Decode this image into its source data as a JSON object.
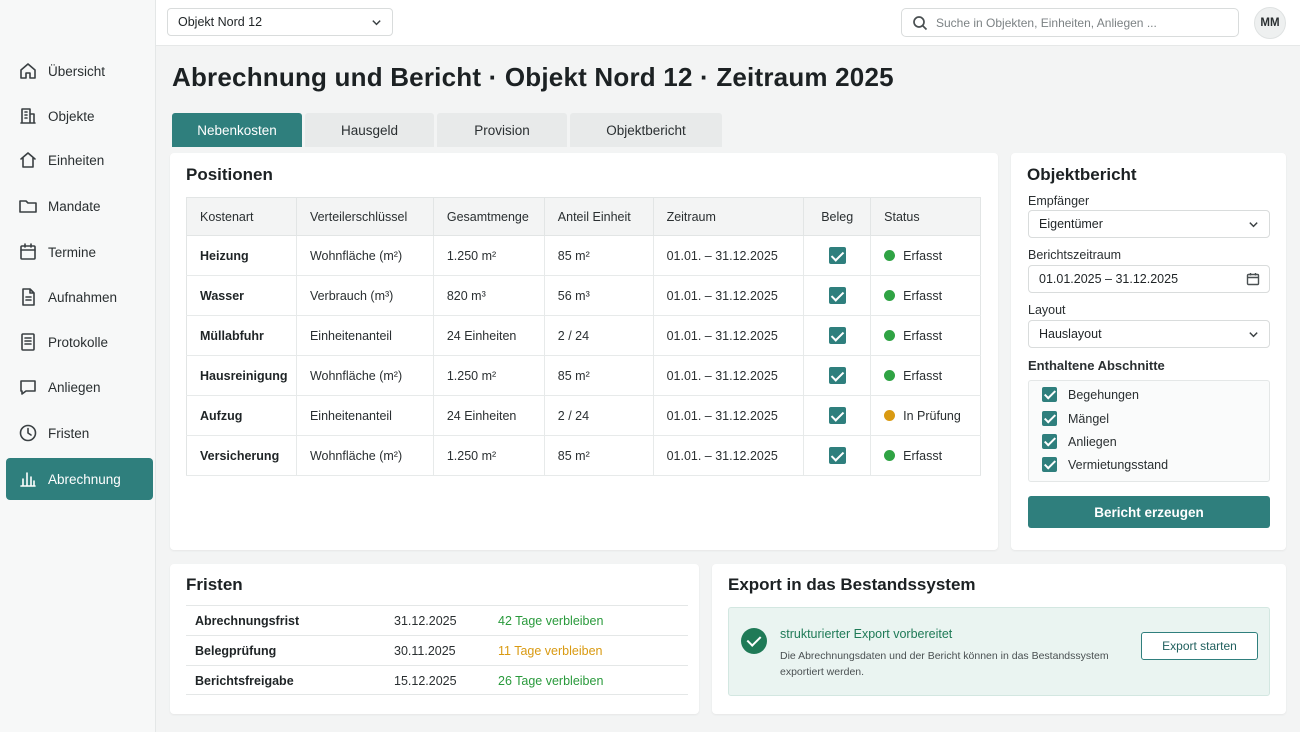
{
  "topbar": {
    "object_select": "Objekt Nord 12",
    "search_placeholder": "Suche in Objekten, Einheiten, Anliegen ...",
    "avatar_initials": "MM"
  },
  "sidebar": {
    "items": [
      {
        "label": "Übersicht",
        "icon": "home-icon"
      },
      {
        "label": "Objekte",
        "icon": "building-icon"
      },
      {
        "label": "Einheiten",
        "icon": "unit-home-icon"
      },
      {
        "label": "Mandate",
        "icon": "folder-icon"
      },
      {
        "label": "Termine",
        "icon": "calendar-icon"
      },
      {
        "label": "Aufnahmen",
        "icon": "document-icon"
      },
      {
        "label": "Protokolle",
        "icon": "list-document-icon"
      },
      {
        "label": "Anliegen",
        "icon": "chat-icon"
      },
      {
        "label": "Fristen",
        "icon": "clock-icon"
      },
      {
        "label": "Abrechnung",
        "icon": "bar-chart-icon",
        "active": true
      }
    ]
  },
  "page": {
    "title": "Abrechnung und Bericht · Objekt Nord 12 · Zeitraum 2025"
  },
  "tabs": [
    {
      "label": "Nebenkosten",
      "active": true
    },
    {
      "label": "Hausgeld"
    },
    {
      "label": "Provision"
    },
    {
      "label": "Objektbericht"
    }
  ],
  "positions": {
    "title": "Positionen",
    "headers": {
      "kostenart": "Kostenart",
      "schluessel": "Verteilerschlüssel",
      "gesamt": "Gesamtmenge",
      "anteil": "Anteil Einheit",
      "zeitraum": "Zeitraum",
      "beleg": "Beleg",
      "status": "Status"
    },
    "rows": [
      {
        "kostenart": "Heizung",
        "schluessel": "Wohnfläche (m²)",
        "gesamt": "1.250 m²",
        "anteil": "85 m²",
        "zeitraum": "01.01. – 31.12.2025",
        "beleg": true,
        "status": "Erfasst",
        "status_color": "#2fa344"
      },
      {
        "kostenart": "Wasser",
        "schluessel": "Verbrauch (m³)",
        "gesamt": "820 m³",
        "anteil": "56 m³",
        "zeitraum": "01.01. – 31.12.2025",
        "beleg": true,
        "status": "Erfasst",
        "status_color": "#2fa344"
      },
      {
        "kostenart": "Müllabfuhr",
        "schluessel": "Einheitenanteil",
        "gesamt": "24 Einheiten",
        "anteil": "2 / 24",
        "zeitraum": "01.01. – 31.12.2025",
        "beleg": true,
        "status": "Erfasst",
        "status_color": "#2fa344"
      },
      {
        "kostenart": "Hausreinigung",
        "schluessel": "Wohnfläche (m²)",
        "gesamt": "1.250 m²",
        "anteil": "85 m²",
        "zeitraum": "01.01. – 31.12.2025",
        "beleg": true,
        "status": "Erfasst",
        "status_color": "#2fa344"
      },
      {
        "kostenart": "Aufzug",
        "schluessel": "Einheitenanteil",
        "gesamt": "24 Einheiten",
        "anteil": "2 / 24",
        "zeitraum": "01.01. – 31.12.2025",
        "beleg": true,
        "status": "In Prüfung",
        "status_color": "#d99a12"
      },
      {
        "kostenart": "Versicherung",
        "schluessel": "Wohnfläche (m²)",
        "gesamt": "1.250 m²",
        "anteil": "85 m²",
        "zeitraum": "01.01. – 31.12.2025",
        "beleg": true,
        "status": "Erfasst",
        "status_color": "#2fa344"
      }
    ]
  },
  "report": {
    "title": "Objektbericht",
    "recipient_label": "Empfänger",
    "recipient_value": "Eigentümer",
    "period_label": "Berichtszeitraum",
    "period_value": "01.01.2025 – 31.12.2025",
    "layout_label": "Layout",
    "layout_value": "Hauslayout",
    "sections_label": "Enthaltene Abschnitte",
    "sections": [
      {
        "label": "Begehungen",
        "checked": true
      },
      {
        "label": "Mängel",
        "checked": true
      },
      {
        "label": "Anliegen",
        "checked": true
      },
      {
        "label": "Vermietungsstand",
        "checked": true
      }
    ],
    "generate_button": "Bericht erzeugen"
  },
  "deadlines": {
    "title": "Fristen",
    "rows": [
      {
        "name": "Abrechnungsfrist",
        "date": "31.12.2025",
        "remaining": "42 Tage verbleiben",
        "color": "#2a9a3c"
      },
      {
        "name": "Belegprüfung",
        "date": "30.11.2025",
        "remaining": "11 Tage verbleiben",
        "color": "#d99a12"
      },
      {
        "name": "Berichtsfreigabe",
        "date": "15.12.2025",
        "remaining": "26 Tage verbleiben",
        "color": "#2a9a3c"
      }
    ]
  },
  "export": {
    "title": "Export in das Bestandssystem",
    "status_title": "strukturierter Export vorbereitet",
    "status_desc": "Die Abrechnungsdaten und der Bericht können in das Bestandssystem exportiert werden.",
    "button": "Export starten"
  },
  "colors": {
    "accent": "#2f7f7d",
    "success": "#1f7a57",
    "warning": "#d99a12"
  }
}
